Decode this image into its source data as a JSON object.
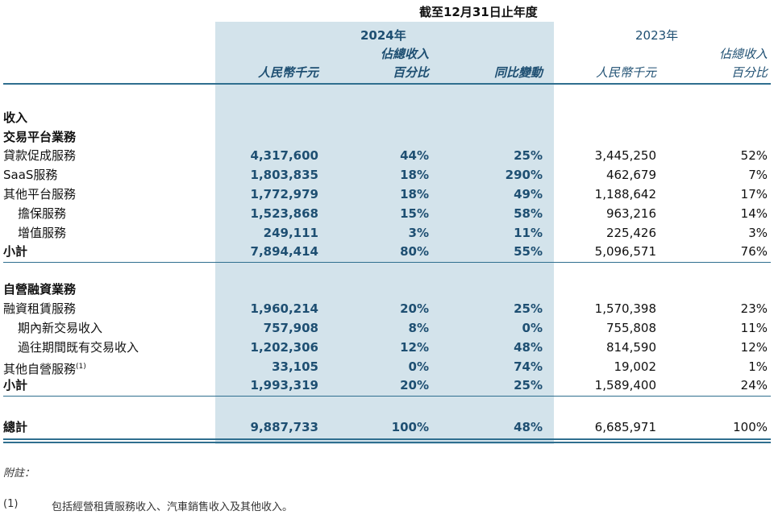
{
  "header": {
    "period": "截至12月31日止年度",
    "year_current": "2024年",
    "year_prior": "2023年",
    "col_rmb": "人民幣千元",
    "col_pct_line1": "佔總收入",
    "col_pct_line2": "百分比",
    "col_yoy": "同比變動"
  },
  "sections": {
    "revenue": "收入",
    "platform": "交易平台業務",
    "self_operated": "自營融資業務"
  },
  "rows": {
    "loan_facilitation": {
      "label": "貸款促成服務",
      "rmb_2024": "4,317,600",
      "pct_2024": "44%",
      "yoy": "25%",
      "rmb_2023": "3,445,250",
      "pct_2023": "52%"
    },
    "saas": {
      "label": "SaaS服務",
      "rmb_2024": "1,803,835",
      "pct_2024": "18%",
      "yoy": "290%",
      "rmb_2023": "462,679",
      "pct_2023": "7%"
    },
    "other_platform": {
      "label": "其他平台服務",
      "rmb_2024": "1,772,979",
      "pct_2024": "18%",
      "yoy": "49%",
      "rmb_2023": "1,188,642",
      "pct_2023": "17%"
    },
    "guarantee": {
      "label": "擔保服務",
      "rmb_2024": "1,523,868",
      "pct_2024": "15%",
      "yoy": "58%",
      "rmb_2023": "963,216",
      "pct_2023": "14%"
    },
    "value_added": {
      "label": "增值服務",
      "rmb_2024": "249,111",
      "pct_2024": "3%",
      "yoy": "11%",
      "rmb_2023": "225,426",
      "pct_2023": "3%"
    },
    "subtotal_platform": {
      "label": "小計",
      "rmb_2024": "7,894,414",
      "pct_2024": "80%",
      "yoy": "55%",
      "rmb_2023": "5,096,571",
      "pct_2023": "76%"
    },
    "finance_lease": {
      "label": "融資租賃服務",
      "rmb_2024": "1,960,214",
      "pct_2024": "20%",
      "yoy": "25%",
      "rmb_2023": "1,570,398",
      "pct_2023": "23%"
    },
    "new_in_period": {
      "label": "期內新交易收入",
      "rmb_2024": "757,908",
      "pct_2024": "8%",
      "yoy": "0%",
      "rmb_2023": "755,808",
      "pct_2023": "11%"
    },
    "existing_prior": {
      "label": "過往期間既有交易收入",
      "rmb_2024": "1,202,306",
      "pct_2024": "12%",
      "yoy": "48%",
      "rmb_2023": "814,590",
      "pct_2023": "12%"
    },
    "other_self": {
      "label": "其他自營服務",
      "note": "(1)",
      "rmb_2024": "33,105",
      "pct_2024": "0%",
      "yoy": "74%",
      "rmb_2023": "19,002",
      "pct_2023": "1%"
    },
    "subtotal_self": {
      "label": "小計",
      "rmb_2024": "1,993,319",
      "pct_2024": "20%",
      "yoy": "25%",
      "rmb_2023": "1,589,400",
      "pct_2023": "24%"
    },
    "total": {
      "label": "總計",
      "rmb_2024": "9,887,733",
      "pct_2024": "100%",
      "yoy": "48%",
      "rmb_2023": "6,685,971",
      "pct_2023": "100%"
    }
  },
  "footnotes": {
    "title": "附註：",
    "items": [
      {
        "mark": "(1)",
        "text": "包括經營租賃服務收入、汽車銷售收入及其他收入。"
      }
    ]
  },
  "colors": {
    "shade": "#d3e3eb",
    "accent": "#1e4f72",
    "rule": "#2f6f8f"
  }
}
